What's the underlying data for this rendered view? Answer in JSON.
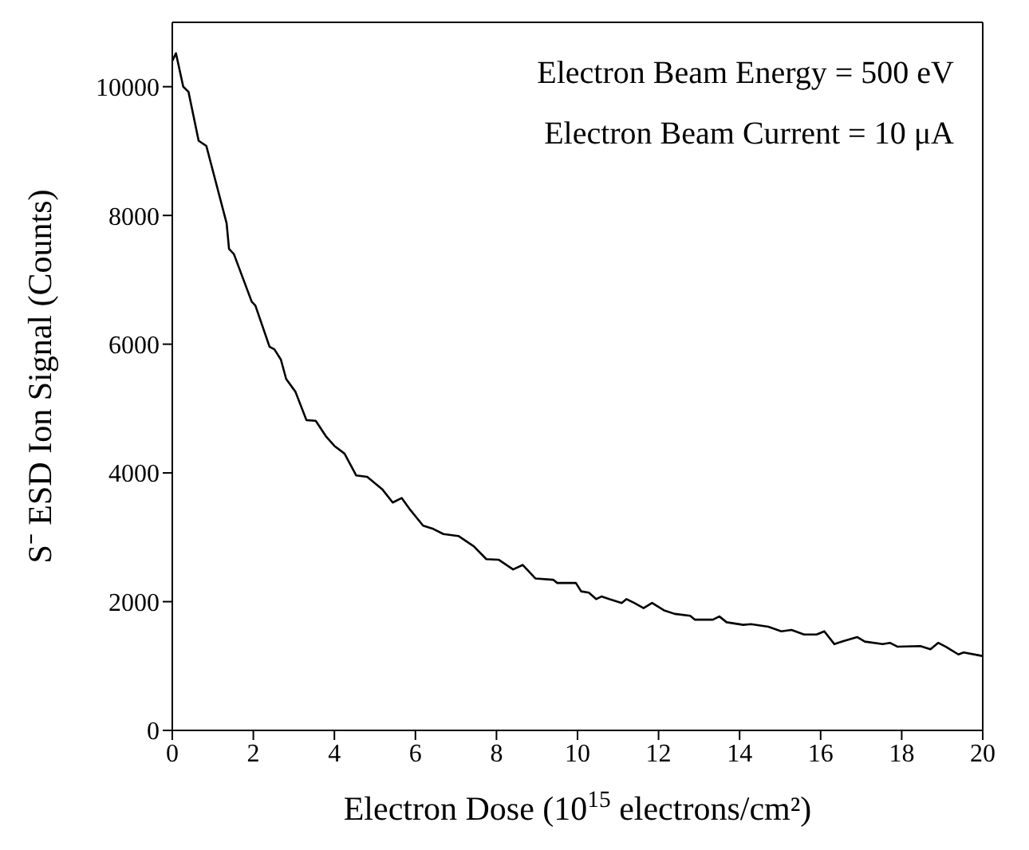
{
  "chart_data": {
    "type": "line",
    "xlabel": "Electron Dose (10$^{15}$ electrons/cm²)",
    "ylabel": "S⁻ ESD Ion Signal (Counts)",
    "annotations": [
      "Electron Beam Energy = 500 eV",
      "Electron Beam Current = 10 μA"
    ],
    "xlim": [
      0,
      20
    ],
    "xticks": [
      0,
      2,
      4,
      6,
      8,
      10,
      12,
      14,
      16,
      18,
      20
    ],
    "ylim": [
      0,
      11000
    ],
    "yticks": [
      0,
      2000,
      4000,
      6000,
      8000,
      10000
    ],
    "marker": "none",
    "line_style": "solid",
    "series": [
      {
        "color": "#000000",
        "x": [
          0,
          0.09,
          0.27,
          0.4,
          0.65,
          0.84,
          1.34,
          1.4,
          1.52,
          1.96,
          2.05,
          2.4,
          2.52,
          2.68,
          2.81,
          3.04,
          3.31,
          3.54,
          3.79,
          4.0,
          4.25,
          4.54,
          4.81,
          5.19,
          5.44,
          5.66,
          5.88,
          6.19,
          6.44,
          6.69,
          7.06,
          7.44,
          7.75,
          8.06,
          8.41,
          8.65,
          8.96,
          9.4,
          9.5,
          9.96,
          10.09,
          10.28,
          10.46,
          10.59,
          10.78,
          11.09,
          11.21,
          11.4,
          11.63,
          11.84,
          12.15,
          12.4,
          12.78,
          12.9,
          13.34,
          13.5,
          13.68,
          14.09,
          14.28,
          14.71,
          15.03,
          15.28,
          15.59,
          15.9,
          16.09,
          16.34,
          16.53,
          16.9,
          17.09,
          17.53,
          17.71,
          17.9,
          18.46,
          18.71,
          18.9,
          19.09,
          19.4,
          19.53,
          19.96,
          20
        ],
        "values": [
          10400,
          10520,
          10000,
          9920,
          9160,
          9080,
          7880,
          7480,
          7400,
          6660,
          6600,
          5960,
          5920,
          5760,
          5460,
          5260,
          4820,
          4810,
          4570,
          4420,
          4300,
          3960,
          3940,
          3740,
          3540,
          3610,
          3420,
          3180,
          3130,
          3050,
          3020,
          2860,
          2660,
          2650,
          2500,
          2570,
          2360,
          2340,
          2290,
          2290,
          2160,
          2140,
          2040,
          2080,
          2040,
          1980,
          2040,
          1980,
          1900,
          1980,
          1860,
          1810,
          1780,
          1720,
          1720,
          1770,
          1680,
          1640,
          1650,
          1610,
          1540,
          1560,
          1490,
          1490,
          1540,
          1340,
          1380,
          1450,
          1380,
          1340,
          1360,
          1300,
          1310,
          1260,
          1360,
          1300,
          1180,
          1210,
          1160,
          1150
        ]
      }
    ]
  }
}
